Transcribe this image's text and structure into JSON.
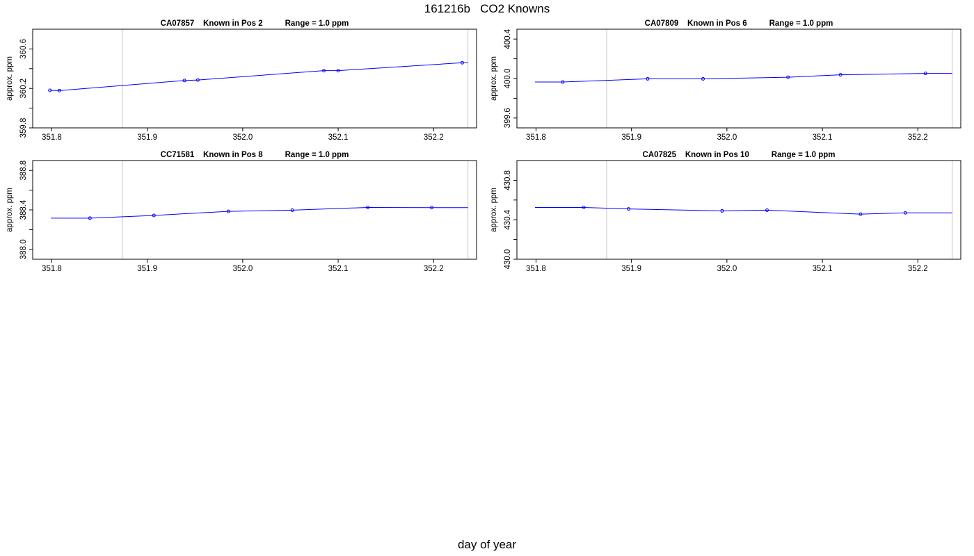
{
  "title": "161216b   CO2 Knowns",
  "xlabel": "day of year",
  "colors": {
    "series": "#0000ff",
    "marker_line": "#c8c8c8",
    "frame": "#000000"
  },
  "chart_data": [
    {
      "type": "line",
      "title": "CA07857    Known in Pos 2          Range = 1.0 ppm",
      "ylabel": "approx. ppm",
      "xlim": [
        351.78,
        352.245
      ],
      "ylim": [
        359.8,
        360.8
      ],
      "xticks": [
        "351.8",
        "351.9",
        "352.0",
        "352.1",
        "352.2"
      ],
      "yticks": [
        "359.8",
        "360.2",
        "360.6"
      ],
      "ytick_values": [
        359.8,
        360.0,
        360.2,
        360.4,
        360.6
      ],
      "vlines": [
        351.874,
        352.236
      ],
      "x": [
        351.798,
        351.808,
        351.939,
        351.953,
        352.085,
        352.1,
        352.23
      ],
      "y": [
        360.18,
        360.178,
        360.28,
        360.285,
        360.38,
        360.38,
        360.46
      ],
      "line_extends_to": 352.236
    },
    {
      "type": "line",
      "title": "CA07809    Known in Pos 6          Range = 1.0 ppm",
      "ylabel": "approx. ppm",
      "xlim": [
        351.78,
        352.245
      ],
      "ylim": [
        399.5,
        400.5
      ],
      "xticks": [
        "351.8",
        "351.9",
        "352.0",
        "352.1",
        "352.2"
      ],
      "yticks": [
        "399.6",
        "400.0",
        "400.4"
      ],
      "ytick_values": [
        399.6,
        399.8,
        400.0,
        400.2,
        400.4
      ],
      "vlines": [
        351.874,
        352.236
      ],
      "x": [
        351.828,
        351.917,
        351.975,
        352.064,
        352.119,
        352.208
      ],
      "y": [
        399.965,
        399.997,
        399.997,
        400.013,
        400.038,
        400.052
      ],
      "line_start": 351.799,
      "line_extends_to": 352.236
    },
    {
      "type": "line",
      "title": "CC71581    Known in Pos 8          Range = 1.0 ppm",
      "ylabel": "approx. ppm",
      "xlim": [
        351.78,
        352.245
      ],
      "ylim": [
        387.9,
        388.9
      ],
      "xticks": [
        "351.8",
        "351.9",
        "352.0",
        "352.1",
        "352.2"
      ],
      "yticks": [
        "388.0",
        "388.4",
        "388.8"
      ],
      "ytick_values": [
        388.0,
        388.2,
        388.4,
        388.6,
        388.8
      ],
      "vlines": [
        351.874,
        352.236
      ],
      "x": [
        351.84,
        351.907,
        351.985,
        352.052,
        352.131,
        352.198
      ],
      "y": [
        388.316,
        388.344,
        388.385,
        388.397,
        388.425,
        388.423
      ],
      "line_start": 351.799,
      "line_extends_to": 352.236
    },
    {
      "type": "line",
      "title": "CA07825    Known in Pos 10          Range = 1.0 ppm",
      "ylabel": "approx. ppm",
      "xlim": [
        351.78,
        352.245
      ],
      "ylim": [
        430.0,
        431.0
      ],
      "xticks": [
        "351.8",
        "351.9",
        "352.0",
        "352.1",
        "352.2"
      ],
      "yticks": [
        "430.0",
        "430.4",
        "430.8"
      ],
      "ytick_values": [
        430.0,
        430.2,
        430.4,
        430.6,
        430.8
      ],
      "vlines": [
        351.874,
        352.236
      ],
      "x": [
        351.85,
        351.897,
        351.995,
        352.042,
        352.14,
        352.187
      ],
      "y": [
        430.525,
        430.51,
        430.49,
        430.497,
        430.457,
        430.47
      ],
      "line_start": 351.799,
      "line_extends_to": 352.236
    }
  ]
}
